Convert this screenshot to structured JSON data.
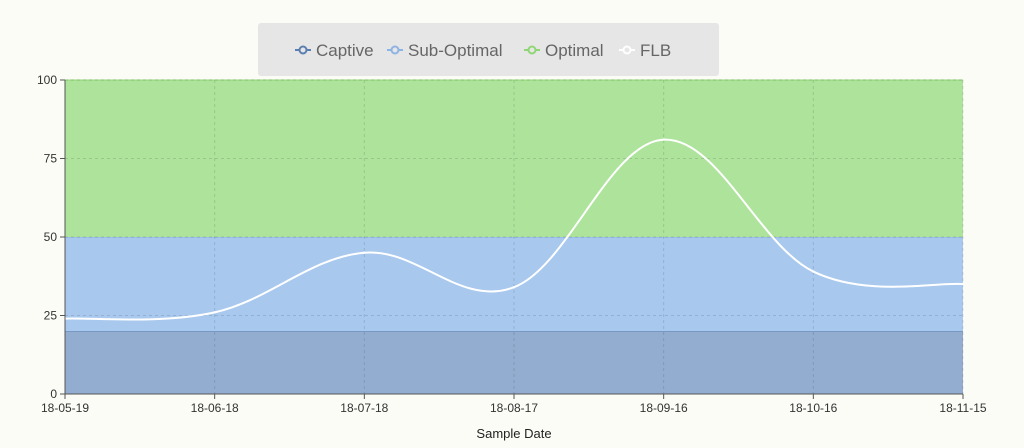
{
  "chart_data": {
    "type": "area",
    "title": "",
    "xlabel": "Sample Date",
    "ylabel": "",
    "ylim": [
      0,
      100
    ],
    "grid": true,
    "legend_position": "top-center",
    "y_ticks": [
      0,
      25,
      50,
      75,
      100
    ],
    "x_ticks": [
      "18-05-19",
      "18-06-18",
      "18-07-18",
      "18-08-17",
      "18-09-16",
      "18-10-16",
      "18-11-15"
    ],
    "bands": [
      {
        "name": "Captive",
        "from": 0,
        "to": 20,
        "color": "#92adcf",
        "marker_color": "#5b7fb0"
      },
      {
        "name": "Sub-Optimal",
        "from": 20,
        "to": 50,
        "color": "#a8c8ee",
        "marker_color": "#8fb3e3"
      },
      {
        "name": "Optimal",
        "from": 50,
        "to": 100,
        "color": "#ade39b",
        "marker_color": "#8fd675"
      }
    ],
    "series": [
      {
        "name": "FLB",
        "color": "#ffffff",
        "x": [
          "18-05-19",
          "18-06-18",
          "18-07-18",
          "18-08-17",
          "18-09-16",
          "18-10-16",
          "18-11-15"
        ],
        "values": [
          24,
          26,
          45,
          34,
          81,
          39,
          35
        ]
      }
    ]
  }
}
